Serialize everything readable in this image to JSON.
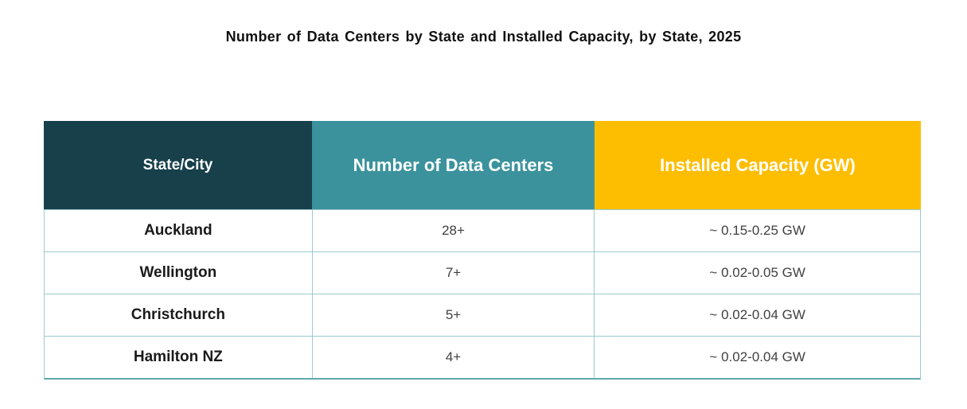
{
  "title": "Number of Data Centers by State and Installed Capacity, by State, 2025",
  "colors": {
    "header_state_bg": "#17404A",
    "header_count_bg": "#3B929C",
    "header_capacity_bg": "#FDBE02",
    "header_text": "#FFFFFF",
    "grid_line": "#9CC9CD",
    "bottom_border": "#5FA8AE",
    "state_text": "#1A1A1A",
    "value_text": "#404040",
    "page_bg": "#FFFFFF"
  },
  "table": {
    "headers": [
      {
        "label": "State/City"
      },
      {
        "label": "Number of Data Centers"
      },
      {
        "label": "Installed Capacity (GW)"
      }
    ],
    "rows": [
      {
        "state": "Auckland",
        "count": "28+",
        "capacity": "~ 0.15-0.25 GW"
      },
      {
        "state": "Wellington",
        "count": "7+",
        "capacity": "~ 0.02-0.05 GW"
      },
      {
        "state": "Christchurch",
        "count": "5+",
        "capacity": "~ 0.02-0.04 GW"
      },
      {
        "state": "Hamilton NZ",
        "count": "4+",
        "capacity": "~ 0.02-0.04 GW"
      }
    ]
  },
  "chart_data": {
    "type": "table",
    "title": "Number of Data Centers by State and Installed Capacity, by State, 2025",
    "columns": [
      "State/City",
      "Number of Data Centers",
      "Installed Capacity (GW)"
    ],
    "rows": [
      [
        "Auckland",
        "28+",
        "~ 0.15-0.25 GW"
      ],
      [
        "Wellington",
        "7+",
        "~ 0.02-0.05 GW"
      ],
      [
        "Christchurch",
        "5+",
        "~ 0.02-0.04 GW"
      ],
      [
        "Hamilton NZ",
        "4+",
        "~ 0.02-0.04 GW"
      ]
    ]
  }
}
